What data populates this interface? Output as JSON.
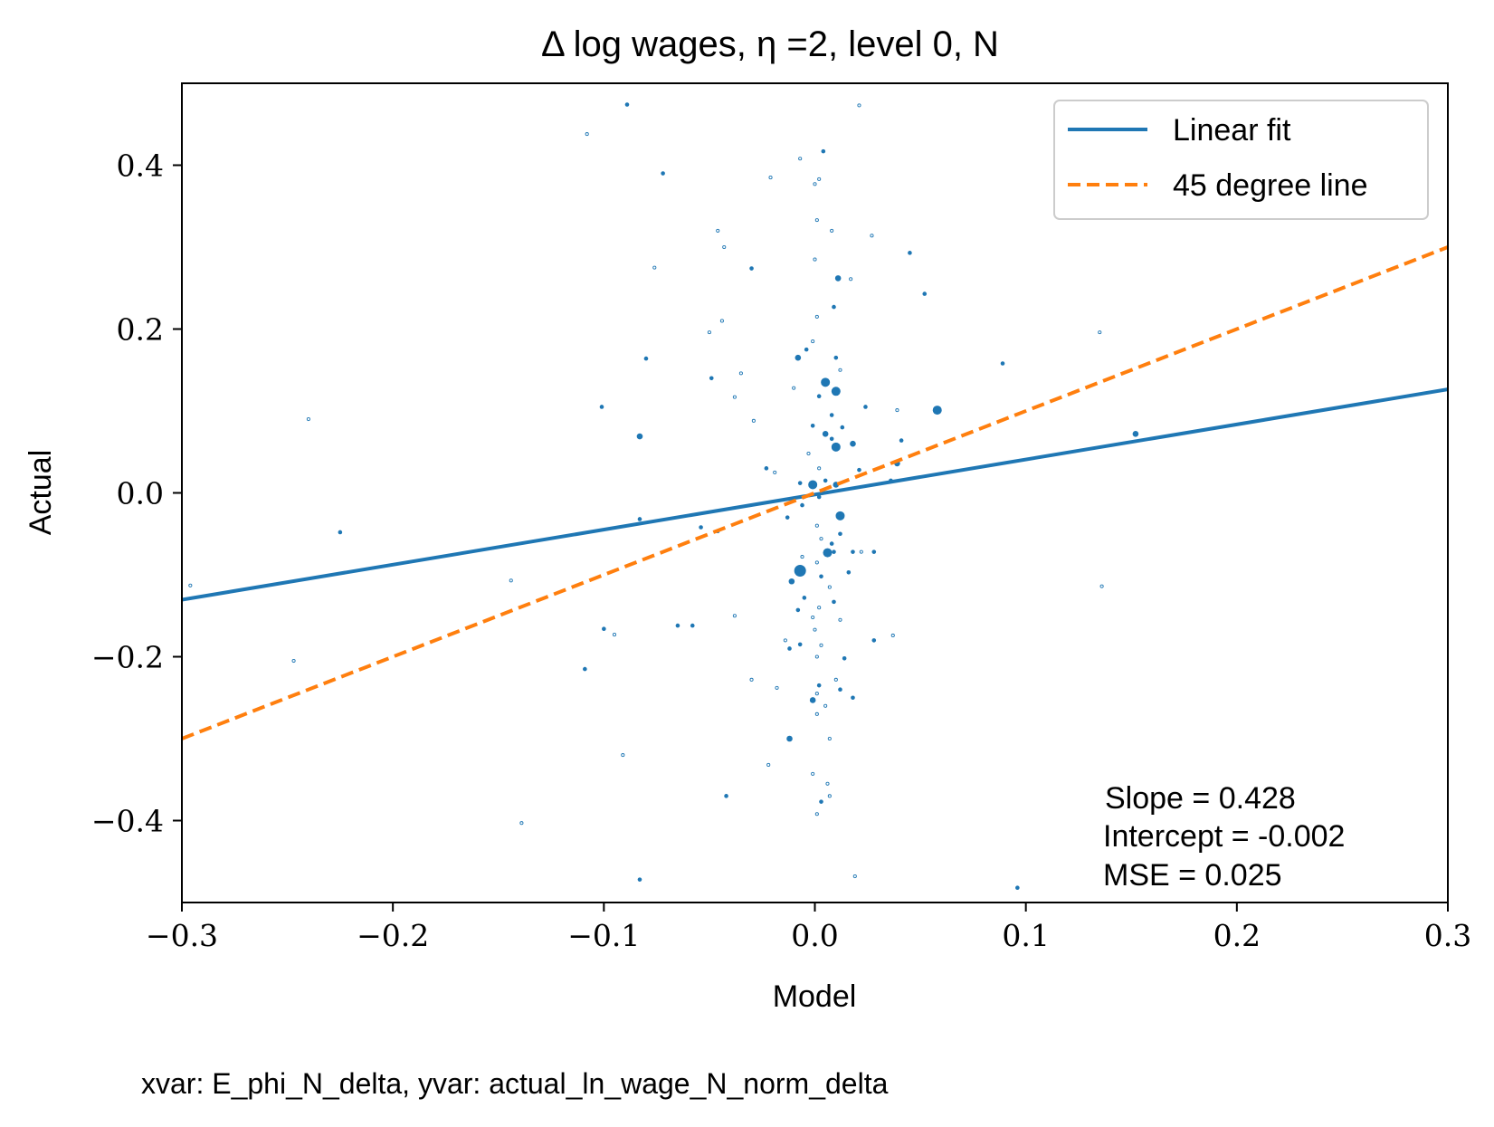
{
  "chart_data": {
    "type": "scatter",
    "title": "Δ log wages, η =2, level 0, N",
    "xlabel": "Model",
    "ylabel": "Actual",
    "xlim": [
      -0.3,
      0.3
    ],
    "ylim": [
      -0.5,
      0.5
    ],
    "xticks": [
      -0.3,
      -0.2,
      -0.1,
      0.0,
      0.1,
      0.2,
      0.3
    ],
    "xtick_labels": [
      "−0.3",
      "−0.2",
      "−0.1",
      "0.0",
      "0.1",
      "0.2",
      "0.3"
    ],
    "yticks": [
      0.4,
      0.2,
      0.0,
      -0.2,
      -0.4
    ],
    "ytick_labels": [
      "0.4",
      "0.2",
      "0.0",
      "−0.2",
      "−0.4"
    ],
    "grid": false,
    "legend": {
      "position": "top-right",
      "entries": [
        {
          "label": "Linear fit",
          "color": "#1f77b4",
          "style": "solid"
        },
        {
          "label": "45 degree line",
          "color": "#ff7f0e",
          "style": "dashed"
        }
      ]
    },
    "lines": [
      {
        "name": "Linear fit",
        "color": "#1f77b4",
        "style": "solid",
        "slope": 0.428,
        "intercept": -0.002
      },
      {
        "name": "45 degree line",
        "color": "#ff7f0e",
        "style": "dashed",
        "slope": 1.0,
        "intercept": 0.0
      }
    ],
    "stats": [
      "Slope = 0.428",
      "Intercept = -0.002",
      "MSE = 0.025"
    ],
    "points_color": "#1f77b4",
    "points": [
      {
        "x": -0.089,
        "y": 0.474,
        "w": 2
      },
      {
        "x": 0.021,
        "y": 0.473,
        "w": 1
      },
      {
        "x": -0.108,
        "y": 0.438,
        "w": 1
      },
      {
        "x": 0.004,
        "y": 0.417,
        "w": 2
      },
      {
        "x": -0.007,
        "y": 0.408,
        "w": 1
      },
      {
        "x": -0.072,
        "y": 0.39,
        "w": 2
      },
      {
        "x": -0.021,
        "y": 0.385,
        "w": 1
      },
      {
        "x": 0.002,
        "y": 0.383,
        "w": 1
      },
      {
        "x": 0.0,
        "y": 0.377,
        "w": 1
      },
      {
        "x": 0.001,
        "y": 0.333,
        "w": 1
      },
      {
        "x": -0.046,
        "y": 0.32,
        "w": 1
      },
      {
        "x": 0.008,
        "y": 0.32,
        "w": 1
      },
      {
        "x": 0.027,
        "y": 0.314,
        "w": 1
      },
      {
        "x": -0.043,
        "y": 0.3,
        "w": 1
      },
      {
        "x": 0.045,
        "y": 0.293,
        "w": 2
      },
      {
        "x": -0.076,
        "y": 0.275,
        "w": 1
      },
      {
        "x": -0.03,
        "y": 0.274,
        "w": 2
      },
      {
        "x": 0.0,
        "y": 0.285,
        "w": 1
      },
      {
        "x": 0.011,
        "y": 0.262,
        "w": 3
      },
      {
        "x": 0.017,
        "y": 0.261,
        "w": 1
      },
      {
        "x": 0.052,
        "y": 0.243,
        "w": 2
      },
      {
        "x": 0.009,
        "y": 0.227,
        "w": 2
      },
      {
        "x": 0.001,
        "y": 0.215,
        "w": 1
      },
      {
        "x": -0.044,
        "y": 0.21,
        "w": 1
      },
      {
        "x": -0.05,
        "y": 0.196,
        "w": 1
      },
      {
        "x": 0.135,
        "y": 0.196,
        "w": 1
      },
      {
        "x": -0.001,
        "y": 0.185,
        "w": 1
      },
      {
        "x": -0.004,
        "y": 0.175,
        "w": 2
      },
      {
        "x": -0.008,
        "y": 0.165,
        "w": 3
      },
      {
        "x": -0.08,
        "y": 0.164,
        "w": 2
      },
      {
        "x": 0.01,
        "y": 0.165,
        "w": 2
      },
      {
        "x": 0.089,
        "y": 0.158,
        "w": 2
      },
      {
        "x": 0.012,
        "y": 0.15,
        "w": 1
      },
      {
        "x": -0.035,
        "y": 0.146,
        "w": 1
      },
      {
        "x": -0.049,
        "y": 0.14,
        "w": 2
      },
      {
        "x": 0.005,
        "y": 0.135,
        "w": 4
      },
      {
        "x": 0.01,
        "y": 0.124,
        "w": 4
      },
      {
        "x": -0.038,
        "y": 0.117,
        "w": 1
      },
      {
        "x": -0.01,
        "y": 0.128,
        "w": 1
      },
      {
        "x": 0.002,
        "y": 0.118,
        "w": 2
      },
      {
        "x": -0.101,
        "y": 0.105,
        "w": 2
      },
      {
        "x": 0.024,
        "y": 0.105,
        "w": 2
      },
      {
        "x": 0.058,
        "y": 0.101,
        "w": 4
      },
      {
        "x": 0.039,
        "y": 0.101,
        "w": 1
      },
      {
        "x": 0.008,
        "y": 0.095,
        "w": 2
      },
      {
        "x": -0.029,
        "y": 0.088,
        "w": 1
      },
      {
        "x": -0.001,
        "y": 0.082,
        "w": 2
      },
      {
        "x": 0.013,
        "y": 0.08,
        "w": 2
      },
      {
        "x": -0.083,
        "y": 0.069,
        "w": 3
      },
      {
        "x": 0.005,
        "y": 0.072,
        "w": 3
      },
      {
        "x": 0.008,
        "y": 0.066,
        "w": 2
      },
      {
        "x": 0.041,
        "y": 0.064,
        "w": 2
      },
      {
        "x": 0.01,
        "y": 0.056,
        "w": 4
      },
      {
        "x": 0.018,
        "y": 0.06,
        "w": 3
      },
      {
        "x": -0.003,
        "y": 0.048,
        "w": 1
      },
      {
        "x": 0.152,
        "y": 0.072,
        "w": 3
      },
      {
        "x": 0.039,
        "y": 0.036,
        "w": 3
      },
      {
        "x": 0.002,
        "y": 0.03,
        "w": 1
      },
      {
        "x": -0.023,
        "y": 0.03,
        "w": 2
      },
      {
        "x": 0.021,
        "y": 0.028,
        "w": 2
      },
      {
        "x": -0.019,
        "y": 0.025,
        "w": 1
      },
      {
        "x": 0.036,
        "y": 0.015,
        "w": 2
      },
      {
        "x": -0.001,
        "y": 0.01,
        "w": 4
      },
      {
        "x": 0.01,
        "y": 0.01,
        "w": 3
      },
      {
        "x": -0.007,
        "y": 0.012,
        "w": 2
      },
      {
        "x": 0.005,
        "y": 0.015,
        "w": 2
      },
      {
        "x": 0.002,
        "y": -0.005,
        "w": 2
      },
      {
        "x": -0.006,
        "y": -0.015,
        "w": 2
      },
      {
        "x": -0.013,
        "y": -0.03,
        "w": 2
      },
      {
        "x": 0.012,
        "y": -0.028,
        "w": 4
      },
      {
        "x": -0.083,
        "y": -0.032,
        "w": 2
      },
      {
        "x": 0.001,
        "y": -0.04,
        "w": 1
      },
      {
        "x": -0.054,
        "y": -0.042,
        "w": 2
      },
      {
        "x": -0.046,
        "y": -0.047,
        "w": 1
      },
      {
        "x": 0.012,
        "y": -0.05,
        "w": 2
      },
      {
        "x": -0.225,
        "y": -0.048,
        "w": 2
      },
      {
        "x": 0.003,
        "y": -0.056,
        "w": 1
      },
      {
        "x": 0.008,
        "y": -0.062,
        "w": 2
      },
      {
        "x": 0.009,
        "y": -0.072,
        "w": 2
      },
      {
        "x": 0.006,
        "y": -0.073,
        "w": 4
      },
      {
        "x": 0.018,
        "y": -0.072,
        "w": 2
      },
      {
        "x": 0.022,
        "y": -0.072,
        "w": 1
      },
      {
        "x": 0.028,
        "y": -0.072,
        "w": 2
      },
      {
        "x": -0.006,
        "y": -0.078,
        "w": 1
      },
      {
        "x": 0.001,
        "y": -0.085,
        "w": 1
      },
      {
        "x": -0.007,
        "y": -0.095,
        "w": 5
      },
      {
        "x": 0.016,
        "y": -0.097,
        "w": 2
      },
      {
        "x": 0.003,
        "y": -0.102,
        "w": 2
      },
      {
        "x": -0.011,
        "y": -0.108,
        "w": 3
      },
      {
        "x": -0.144,
        "y": -0.107,
        "w": 1
      },
      {
        "x": -0.296,
        "y": -0.113,
        "w": 1
      },
      {
        "x": 0.136,
        "y": -0.114,
        "w": 1
      },
      {
        "x": 0.007,
        "y": -0.115,
        "w": 1
      },
      {
        "x": -0.005,
        "y": -0.128,
        "w": 2
      },
      {
        "x": 0.009,
        "y": -0.133,
        "w": 2
      },
      {
        "x": 0.002,
        "y": -0.14,
        "w": 1
      },
      {
        "x": -0.008,
        "y": -0.143,
        "w": 2
      },
      {
        "x": -0.038,
        "y": -0.15,
        "w": 1
      },
      {
        "x": -0.001,
        "y": -0.152,
        "w": 1
      },
      {
        "x": 0.012,
        "y": -0.155,
        "w": 1
      },
      {
        "x": -0.065,
        "y": -0.162,
        "w": 2
      },
      {
        "x": -0.058,
        "y": -0.162,
        "w": 2
      },
      {
        "x": -0.1,
        "y": -0.166,
        "w": 2
      },
      {
        "x": 0.0,
        "y": -0.167,
        "w": 1
      },
      {
        "x": -0.095,
        "y": -0.173,
        "w": 1
      },
      {
        "x": 0.037,
        "y": -0.174,
        "w": 1
      },
      {
        "x": 0.028,
        "y": -0.18,
        "w": 2
      },
      {
        "x": -0.014,
        "y": -0.18,
        "w": 1
      },
      {
        "x": -0.007,
        "y": -0.185,
        "w": 2
      },
      {
        "x": 0.003,
        "y": -0.186,
        "w": 1
      },
      {
        "x": -0.012,
        "y": -0.19,
        "w": 2
      },
      {
        "x": 0.001,
        "y": -0.2,
        "w": 1
      },
      {
        "x": 0.014,
        "y": -0.202,
        "w": 2
      },
      {
        "x": -0.247,
        "y": -0.205,
        "w": 1
      },
      {
        "x": -0.109,
        "y": -0.215,
        "w": 2
      },
      {
        "x": -0.03,
        "y": -0.228,
        "w": 1
      },
      {
        "x": 0.01,
        "y": -0.228,
        "w": 1
      },
      {
        "x": 0.002,
        "y": -0.235,
        "w": 2
      },
      {
        "x": -0.018,
        "y": -0.238,
        "w": 1
      },
      {
        "x": 0.012,
        "y": -0.24,
        "w": 2
      },
      {
        "x": 0.001,
        "y": -0.245,
        "w": 1
      },
      {
        "x": -0.001,
        "y": -0.253,
        "w": 3
      },
      {
        "x": 0.018,
        "y": -0.25,
        "w": 2
      },
      {
        "x": 0.005,
        "y": -0.26,
        "w": 1
      },
      {
        "x": 0.001,
        "y": -0.27,
        "w": 1
      },
      {
        "x": -0.012,
        "y": -0.3,
        "w": 3
      },
      {
        "x": 0.007,
        "y": -0.3,
        "w": 1
      },
      {
        "x": -0.091,
        "y": -0.32,
        "w": 1
      },
      {
        "x": -0.022,
        "y": -0.332,
        "w": 1
      },
      {
        "x": -0.001,
        "y": -0.343,
        "w": 1
      },
      {
        "x": 0.006,
        "y": -0.355,
        "w": 1
      },
      {
        "x": -0.042,
        "y": -0.37,
        "w": 2
      },
      {
        "x": 0.007,
        "y": -0.37,
        "w": 1
      },
      {
        "x": 0.003,
        "y": -0.377,
        "w": 2
      },
      {
        "x": 0.001,
        "y": -0.392,
        "w": 1
      },
      {
        "x": -0.139,
        "y": -0.403,
        "w": 1
      },
      {
        "x": -0.083,
        "y": -0.472,
        "w": 2
      },
      {
        "x": 0.019,
        "y": -0.468,
        "w": 1
      },
      {
        "x": 0.096,
        "y": -0.482,
        "w": 2
      },
      {
        "x": -0.24,
        "y": 0.09,
        "w": 1
      }
    ]
  },
  "footer": {
    "caption": "xvar: E_phi_N_delta, yvar: actual_ln_wage_N_norm_delta"
  }
}
